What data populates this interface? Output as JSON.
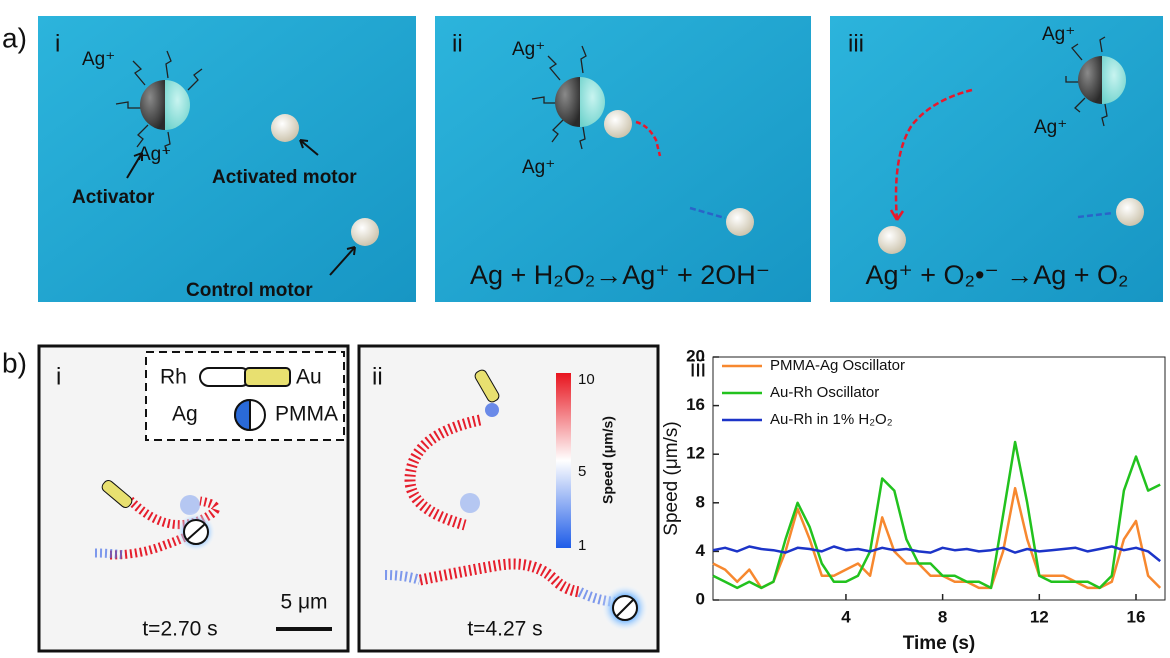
{
  "figure": {
    "a": {
      "label": "a)",
      "panels": [
        {
          "label": "i",
          "texts": [
            "Ag⁺",
            "Ag⁺",
            "Activator",
            "Activated motor",
            "Control motor"
          ]
        },
        {
          "label": "ii",
          "texts": [
            "Ag⁺",
            "Ag⁺"
          ],
          "equation": "Ag + H₂O₂→Ag⁺ + 2OH⁻"
        },
        {
          "label": "iii",
          "texts": [
            "Ag⁺",
            "Ag⁺"
          ],
          "equation": "Ag⁺ + O₂•⁻ →Ag + O₂"
        }
      ]
    },
    "b": {
      "label": "b)",
      "panels": [
        {
          "label": "i",
          "legend": {
            "rod_left": "Rh",
            "rod_right": "Au",
            "janus_left": "Ag",
            "janus_right": "PMMA"
          },
          "scale_bar": "5 μm",
          "time": "t=2.70 s"
        },
        {
          "label": "ii",
          "time": "t=4.27 s",
          "colorbar": {
            "title": "Speed (μm/s)",
            "ticks": [
              10,
              5,
              1
            ]
          }
        },
        {
          "label": "iii"
        }
      ]
    }
  },
  "chart_data": {
    "type": "line",
    "x_label": "Time (s)",
    "y_label": "Speed (μm/s)",
    "x": [
      -1.5,
      -1,
      -0.5,
      0,
      0.5,
      1,
      1.5,
      2,
      2.5,
      3,
      3.5,
      4,
      4.5,
      5,
      5.5,
      6,
      6.5,
      7,
      7.5,
      8,
      8.5,
      9,
      9.5,
      10,
      10.5,
      11,
      11.5,
      12,
      12.5,
      13,
      13.5,
      14,
      14.5,
      15,
      15.5,
      16,
      16.5,
      17
    ],
    "series": [
      {
        "name": "PMMA-Ag Oscillator",
        "color": "#f7882f",
        "values": [
          3,
          2.5,
          1.5,
          2.5,
          1,
          1.5,
          4,
          7.5,
          5,
          2,
          2,
          2.5,
          3,
          2,
          6.8,
          4,
          3,
          3,
          2,
          2,
          1.5,
          1.5,
          1,
          1,
          4,
          9.2,
          5,
          2,
          2,
          2,
          1.5,
          1,
          1,
          1.5,
          5,
          6.5,
          2,
          1
        ]
      },
      {
        "name": "Au-Rh Oscillator",
        "color": "#22c21e",
        "values": [
          2,
          1.5,
          1,
          1.5,
          1,
          1.5,
          5,
          8,
          6,
          3,
          1.5,
          1.5,
          2,
          4,
          10,
          9,
          5,
          3,
          3,
          2,
          2,
          1.5,
          1.5,
          1,
          7,
          13,
          8,
          2,
          1.5,
          1.5,
          1.5,
          1.5,
          1,
          2,
          9,
          11.8,
          9,
          9.5
        ]
      },
      {
        "name": "Au-Rh in 1% H₂O₂",
        "color": "#1c34c8",
        "values": [
          4.1,
          4.3,
          4.0,
          4.4,
          4.2,
          4.1,
          3.9,
          4.3,
          4.2,
          4.0,
          4.4,
          4.1,
          4.2,
          4.0,
          4.3,
          4.1,
          4.2,
          4.0,
          3.9,
          4.3,
          4.1,
          4.2,
          4.0,
          4.1,
          4.3,
          3.9,
          4.2,
          4.0,
          4.1,
          4.2,
          4.3,
          4.0,
          4.2,
          4.4,
          4.1,
          4.3,
          4.0,
          3.2
        ]
      }
    ],
    "xlim": [
      -1.5,
      17.2
    ],
    "xticks": [
      4,
      8,
      12,
      16
    ],
    "ylim": [
      0,
      20
    ],
    "yticks": [
      0,
      4,
      8,
      12,
      16,
      20
    ]
  }
}
